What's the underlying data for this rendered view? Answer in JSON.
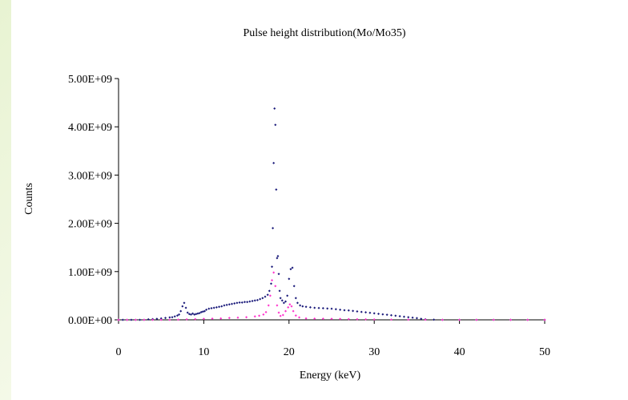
{
  "colors": {
    "background": "#eef6df",
    "axis": "#000000",
    "series_primary": "#1a1a7a",
    "series_secondary": "#ff33cc"
  },
  "chart_data": {
    "type": "scatter",
    "title": "Pulse height distribution(Mo/Mo35)",
    "xlabel": "Energy (keV)",
    "ylabel": "Counts",
    "xlim": [
      0,
      50
    ],
    "ylim": [
      0,
      5000000000
    ],
    "x_ticks": [
      0,
      10,
      20,
      30,
      40,
      50
    ],
    "y_ticks": [
      0,
      1000000000,
      2000000000,
      3000000000,
      4000000000,
      5000000000
    ],
    "y_tick_labels": [
      "0.00E+00",
      "1.00E+09",
      "2.00E+09",
      "3.00E+09",
      "4.00E+09",
      "5.00E+09"
    ],
    "x_tick_labels": [
      "0",
      "10",
      "20",
      "30",
      "40",
      "50"
    ],
    "grid": false,
    "legend": "none",
    "series": [
      {
        "color": "#1a1a7a",
        "points": [
          [
            0,
            0
          ],
          [
            0.5,
            0
          ],
          [
            1,
            0
          ],
          [
            1.5,
            0
          ],
          [
            2,
            0
          ],
          [
            2.5,
            0
          ],
          [
            3,
            0
          ],
          [
            3.5,
            10000000
          ],
          [
            4,
            15000000
          ],
          [
            4.5,
            20000000
          ],
          [
            5,
            30000000
          ],
          [
            5.5,
            40000000
          ],
          [
            6,
            50000000
          ],
          [
            6.3,
            55000000
          ],
          [
            6.6,
            70000000
          ],
          [
            6.9,
            90000000
          ],
          [
            7.1,
            110000000
          ],
          [
            7.3,
            180000000
          ],
          [
            7.5,
            280000000
          ],
          [
            7.7,
            350000000
          ],
          [
            7.9,
            250000000
          ],
          [
            8.1,
            150000000
          ],
          [
            8.3,
            120000000
          ],
          [
            8.5,
            110000000
          ],
          [
            8.7,
            130000000
          ],
          [
            8.9,
            110000000
          ],
          [
            9.1,
            120000000
          ],
          [
            9.3,
            130000000
          ],
          [
            9.5,
            140000000
          ],
          [
            9.7,
            160000000
          ],
          [
            9.9,
            170000000
          ],
          [
            10.1,
            180000000
          ],
          [
            10.3,
            210000000
          ],
          [
            10.6,
            230000000
          ],
          [
            10.9,
            240000000
          ],
          [
            11.2,
            250000000
          ],
          [
            11.5,
            260000000
          ],
          [
            11.8,
            270000000
          ],
          [
            12.1,
            280000000
          ],
          [
            12.4,
            300000000
          ],
          [
            12.7,
            310000000
          ],
          [
            13,
            320000000
          ],
          [
            13.3,
            330000000
          ],
          [
            13.6,
            340000000
          ],
          [
            13.9,
            350000000
          ],
          [
            14.2,
            360000000
          ],
          [
            14.5,
            360000000
          ],
          [
            14.8,
            370000000
          ],
          [
            15.1,
            370000000
          ],
          [
            15.4,
            380000000
          ],
          [
            15.7,
            390000000
          ],
          [
            16,
            400000000
          ],
          [
            16.3,
            410000000
          ],
          [
            16.6,
            430000000
          ],
          [
            16.9,
            450000000
          ],
          [
            17.2,
            480000000
          ],
          [
            17.5,
            520000000
          ],
          [
            17.7,
            600000000
          ],
          [
            17.9,
            750000000
          ],
          [
            18.0,
            1100000000
          ],
          [
            18.1,
            1900000000
          ],
          [
            18.2,
            3250000000
          ],
          [
            18.3,
            4380000000
          ],
          [
            18.4,
            4040000000
          ],
          [
            18.5,
            2700000000
          ],
          [
            18.6,
            1280000000
          ],
          [
            18.7,
            1320000000
          ],
          [
            18.8,
            950000000
          ],
          [
            18.9,
            600000000
          ],
          [
            19.0,
            450000000
          ],
          [
            19.2,
            400000000
          ],
          [
            19.4,
            350000000
          ],
          [
            19.6,
            380000000
          ],
          [
            19.8,
            500000000
          ],
          [
            20.0,
            850000000
          ],
          [
            20.2,
            1050000000
          ],
          [
            20.4,
            1080000000
          ],
          [
            20.6,
            700000000
          ],
          [
            20.8,
            450000000
          ],
          [
            21.0,
            350000000
          ],
          [
            21.3,
            300000000
          ],
          [
            21.6,
            280000000
          ],
          [
            22,
            270000000
          ],
          [
            22.5,
            260000000
          ],
          [
            23,
            250000000
          ],
          [
            23.5,
            245000000
          ],
          [
            24,
            240000000
          ],
          [
            24.5,
            235000000
          ],
          [
            25,
            230000000
          ],
          [
            25.5,
            220000000
          ],
          [
            26,
            210000000
          ],
          [
            26.5,
            200000000
          ],
          [
            27,
            195000000
          ],
          [
            27.5,
            185000000
          ],
          [
            28,
            175000000
          ],
          [
            28.5,
            165000000
          ],
          [
            29,
            155000000
          ],
          [
            29.5,
            145000000
          ],
          [
            30,
            135000000
          ],
          [
            30.5,
            125000000
          ],
          [
            31,
            115000000
          ],
          [
            31.5,
            105000000
          ],
          [
            32,
            95000000
          ],
          [
            32.5,
            85000000
          ],
          [
            33,
            75000000
          ],
          [
            33.5,
            65000000
          ],
          [
            34,
            55000000
          ],
          [
            34.5,
            45000000
          ],
          [
            35,
            35000000
          ],
          [
            35.5,
            20000000
          ],
          [
            36,
            10000000
          ],
          [
            37,
            5000000
          ],
          [
            38,
            0
          ],
          [
            40,
            0
          ],
          [
            42,
            0
          ],
          [
            44,
            0
          ],
          [
            46,
            0
          ],
          [
            48,
            0
          ],
          [
            50,
            0
          ]
        ]
      },
      {
        "color": "#ff33cc",
        "points": [
          [
            0,
            0
          ],
          [
            1,
            0
          ],
          [
            2,
            0
          ],
          [
            3,
            0
          ],
          [
            4,
            0
          ],
          [
            5,
            0
          ],
          [
            6,
            0
          ],
          [
            7,
            5000000
          ],
          [
            8,
            10000000
          ],
          [
            9,
            15000000
          ],
          [
            10,
            20000000
          ],
          [
            11,
            25000000
          ],
          [
            12,
            30000000
          ],
          [
            13,
            40000000
          ],
          [
            14,
            45000000
          ],
          [
            15,
            55000000
          ],
          [
            16,
            70000000
          ],
          [
            16.5,
            85000000
          ],
          [
            17,
            110000000
          ],
          [
            17.3,
            160000000
          ],
          [
            17.6,
            300000000
          ],
          [
            17.8,
            500000000
          ],
          [
            18.0,
            820000000
          ],
          [
            18.2,
            980000000
          ],
          [
            18.4,
            700000000
          ],
          [
            18.6,
            300000000
          ],
          [
            18.8,
            150000000
          ],
          [
            19.0,
            80000000
          ],
          [
            19.3,
            100000000
          ],
          [
            19.6,
            180000000
          ],
          [
            19.9,
            260000000
          ],
          [
            20.1,
            320000000
          ],
          [
            20.3,
            280000000
          ],
          [
            20.5,
            180000000
          ],
          [
            20.8,
            90000000
          ],
          [
            21.2,
            50000000
          ],
          [
            22,
            30000000
          ],
          [
            23,
            25000000
          ],
          [
            24,
            22000000
          ],
          [
            25,
            20000000
          ],
          [
            26,
            18000000
          ],
          [
            27,
            15000000
          ],
          [
            28,
            12000000
          ],
          [
            29,
            10000000
          ],
          [
            30,
            8000000
          ],
          [
            32,
            6000000
          ],
          [
            34,
            4000000
          ],
          [
            36,
            2000000
          ],
          [
            38,
            0
          ],
          [
            40,
            0
          ],
          [
            42,
            0
          ],
          [
            44,
            0
          ],
          [
            46,
            0
          ],
          [
            48,
            0
          ],
          [
            50,
            0
          ]
        ]
      }
    ]
  }
}
